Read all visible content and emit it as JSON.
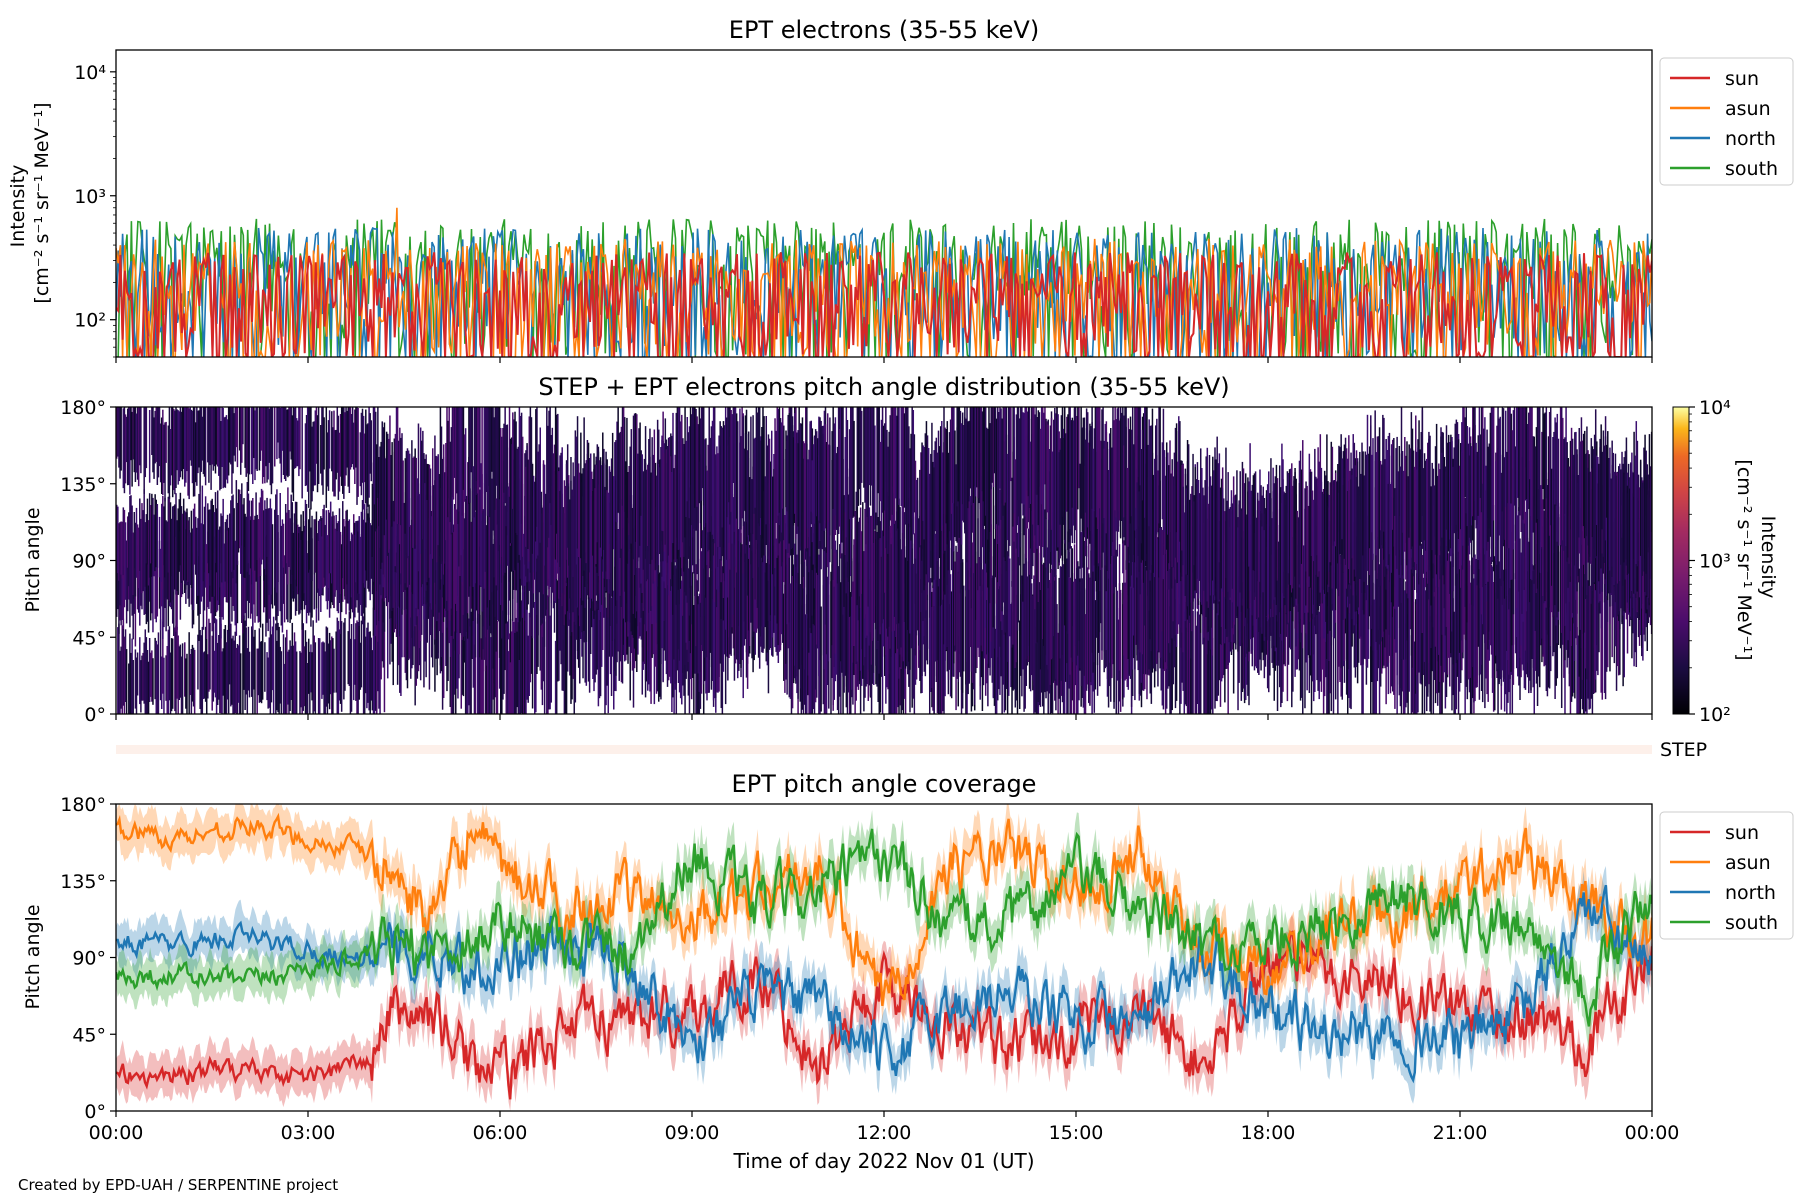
{
  "figure": {
    "credit": "Created by EPD-UAH / SERPENTINE project",
    "xlabel": "Time of day 2022 Nov 01 (UT)",
    "time_ticks": [
      "00:00",
      "03:00",
      "06:00",
      "09:00",
      "12:00",
      "15:00",
      "18:00",
      "21:00",
      "00:00"
    ]
  },
  "chart_data": [
    {
      "type": "line",
      "title": "EPT electrons (35-55 keV)",
      "ylabel_line1": "Intensity",
      "ylabel_line2": "[cm⁻² s⁻¹ sr⁻¹ MeV⁻¹]",
      "yscale": "log",
      "ylim": [
        50,
        15000
      ],
      "ytick_values": [
        100,
        1000,
        10000
      ],
      "ytick_labels": [
        "10²",
        "10³",
        "10⁴"
      ],
      "x_hours": [
        0,
        24
      ],
      "legend_position": "outside right, top",
      "series": [
        {
          "name": "sun",
          "color": "#d62728",
          "typical_range": [
            50,
            350
          ]
        },
        {
          "name": "asun",
          "color": "#ff7f0e",
          "typical_range": [
            50,
            450
          ],
          "peak": 800
        },
        {
          "name": "north",
          "color": "#1f77b4",
          "typical_range": [
            50,
            550
          ]
        },
        {
          "name": "south",
          "color": "#2ca02c",
          "typical_range": [
            50,
            650
          ]
        }
      ]
    },
    {
      "type": "heatmap",
      "title": "STEP + EPT electrons pitch angle distribution (35-55 keV)",
      "ylabel": "Pitch angle",
      "ylim": [
        0,
        180
      ],
      "ytick_values": [
        0,
        45,
        90,
        135,
        180
      ],
      "ytick_labels": [
        "0°",
        "45°",
        "90°",
        "135°",
        "180°"
      ],
      "colorbar": {
        "scale": "log",
        "range": [
          100,
          10000
        ],
        "tick_labels": [
          "10²",
          "10³",
          "10⁴"
        ],
        "label": "Intensity\n[cm⁻² s⁻¹ sr⁻¹ MeV⁻¹]",
        "colormap": "inferno"
      }
    },
    {
      "type": "bar",
      "label": "STEP",
      "color": "#fdf0ea"
    },
    {
      "type": "line",
      "title": "EPT pitch angle coverage",
      "ylabel": "Pitch angle",
      "ylim": [
        0,
        180
      ],
      "ytick_values": [
        0,
        45,
        90,
        135,
        180
      ],
      "ytick_labels": [
        "0°",
        "45°",
        "90°",
        "135°",
        "180°"
      ],
      "legend_position": "outside right, top",
      "series": [
        {
          "name": "sun",
          "color": "#d62728",
          "x": [
            0,
            1,
            2,
            3,
            4,
            4.3,
            5,
            5.5,
            6,
            7,
            8,
            9,
            10,
            11,
            12,
            13,
            14,
            15,
            16,
            17,
            18,
            19,
            20,
            21,
            22,
            23,
            24
          ],
          "y": [
            20,
            22,
            25,
            20,
            30,
            60,
            55,
            30,
            20,
            50,
            55,
            60,
            80,
            30,
            75,
            50,
            35,
            45,
            60,
            25,
            90,
            80,
            75,
            60,
            55,
            40,
            90
          ]
        },
        {
          "name": "asun",
          "color": "#ff7f0e",
          "x": [
            0,
            1,
            2,
            3,
            4,
            4.3,
            5,
            5.5,
            6,
            7,
            8,
            9,
            10,
            11,
            12,
            13,
            14,
            15,
            16,
            17,
            18,
            19,
            20,
            21,
            22,
            23,
            24
          ],
          "y": [
            165,
            160,
            168,
            160,
            150,
            140,
            110,
            165,
            140,
            120,
            125,
            115,
            130,
            140,
            60,
            145,
            150,
            130,
            155,
            95,
            85,
            110,
            115,
            130,
            150,
            120,
            100
          ]
        },
        {
          "name": "north",
          "color": "#1f77b4",
          "x": [
            0,
            1,
            2,
            3,
            4,
            4.3,
            5,
            5.5,
            6,
            7,
            8,
            9,
            10,
            11,
            12,
            13,
            14,
            15,
            16,
            17,
            18,
            19,
            20,
            21,
            22,
            23,
            24
          ],
          "y": [
            100,
            98,
            102,
            95,
            90,
            92,
            95,
            85,
            90,
            95,
            90,
            40,
            70,
            60,
            30,
            60,
            70,
            55,
            50,
            90,
            60,
            45,
            50,
            40,
            60,
            120,
            80
          ]
        },
        {
          "name": "south",
          "color": "#2ca02c",
          "x": [
            0,
            1,
            2,
            3,
            4,
            4.3,
            5,
            5.5,
            6,
            7,
            8,
            9,
            10,
            11,
            12,
            13,
            14,
            15,
            16,
            17,
            18,
            19,
            20,
            21,
            22,
            23,
            24
          ],
          "y": [
            78,
            80,
            75,
            85,
            90,
            95,
            95,
            100,
            110,
            100,
            95,
            150,
            120,
            130,
            150,
            110,
            110,
            140,
            120,
            95,
            100,
            110,
            130,
            115,
            110,
            70,
            130
          ]
        }
      ]
    }
  ]
}
